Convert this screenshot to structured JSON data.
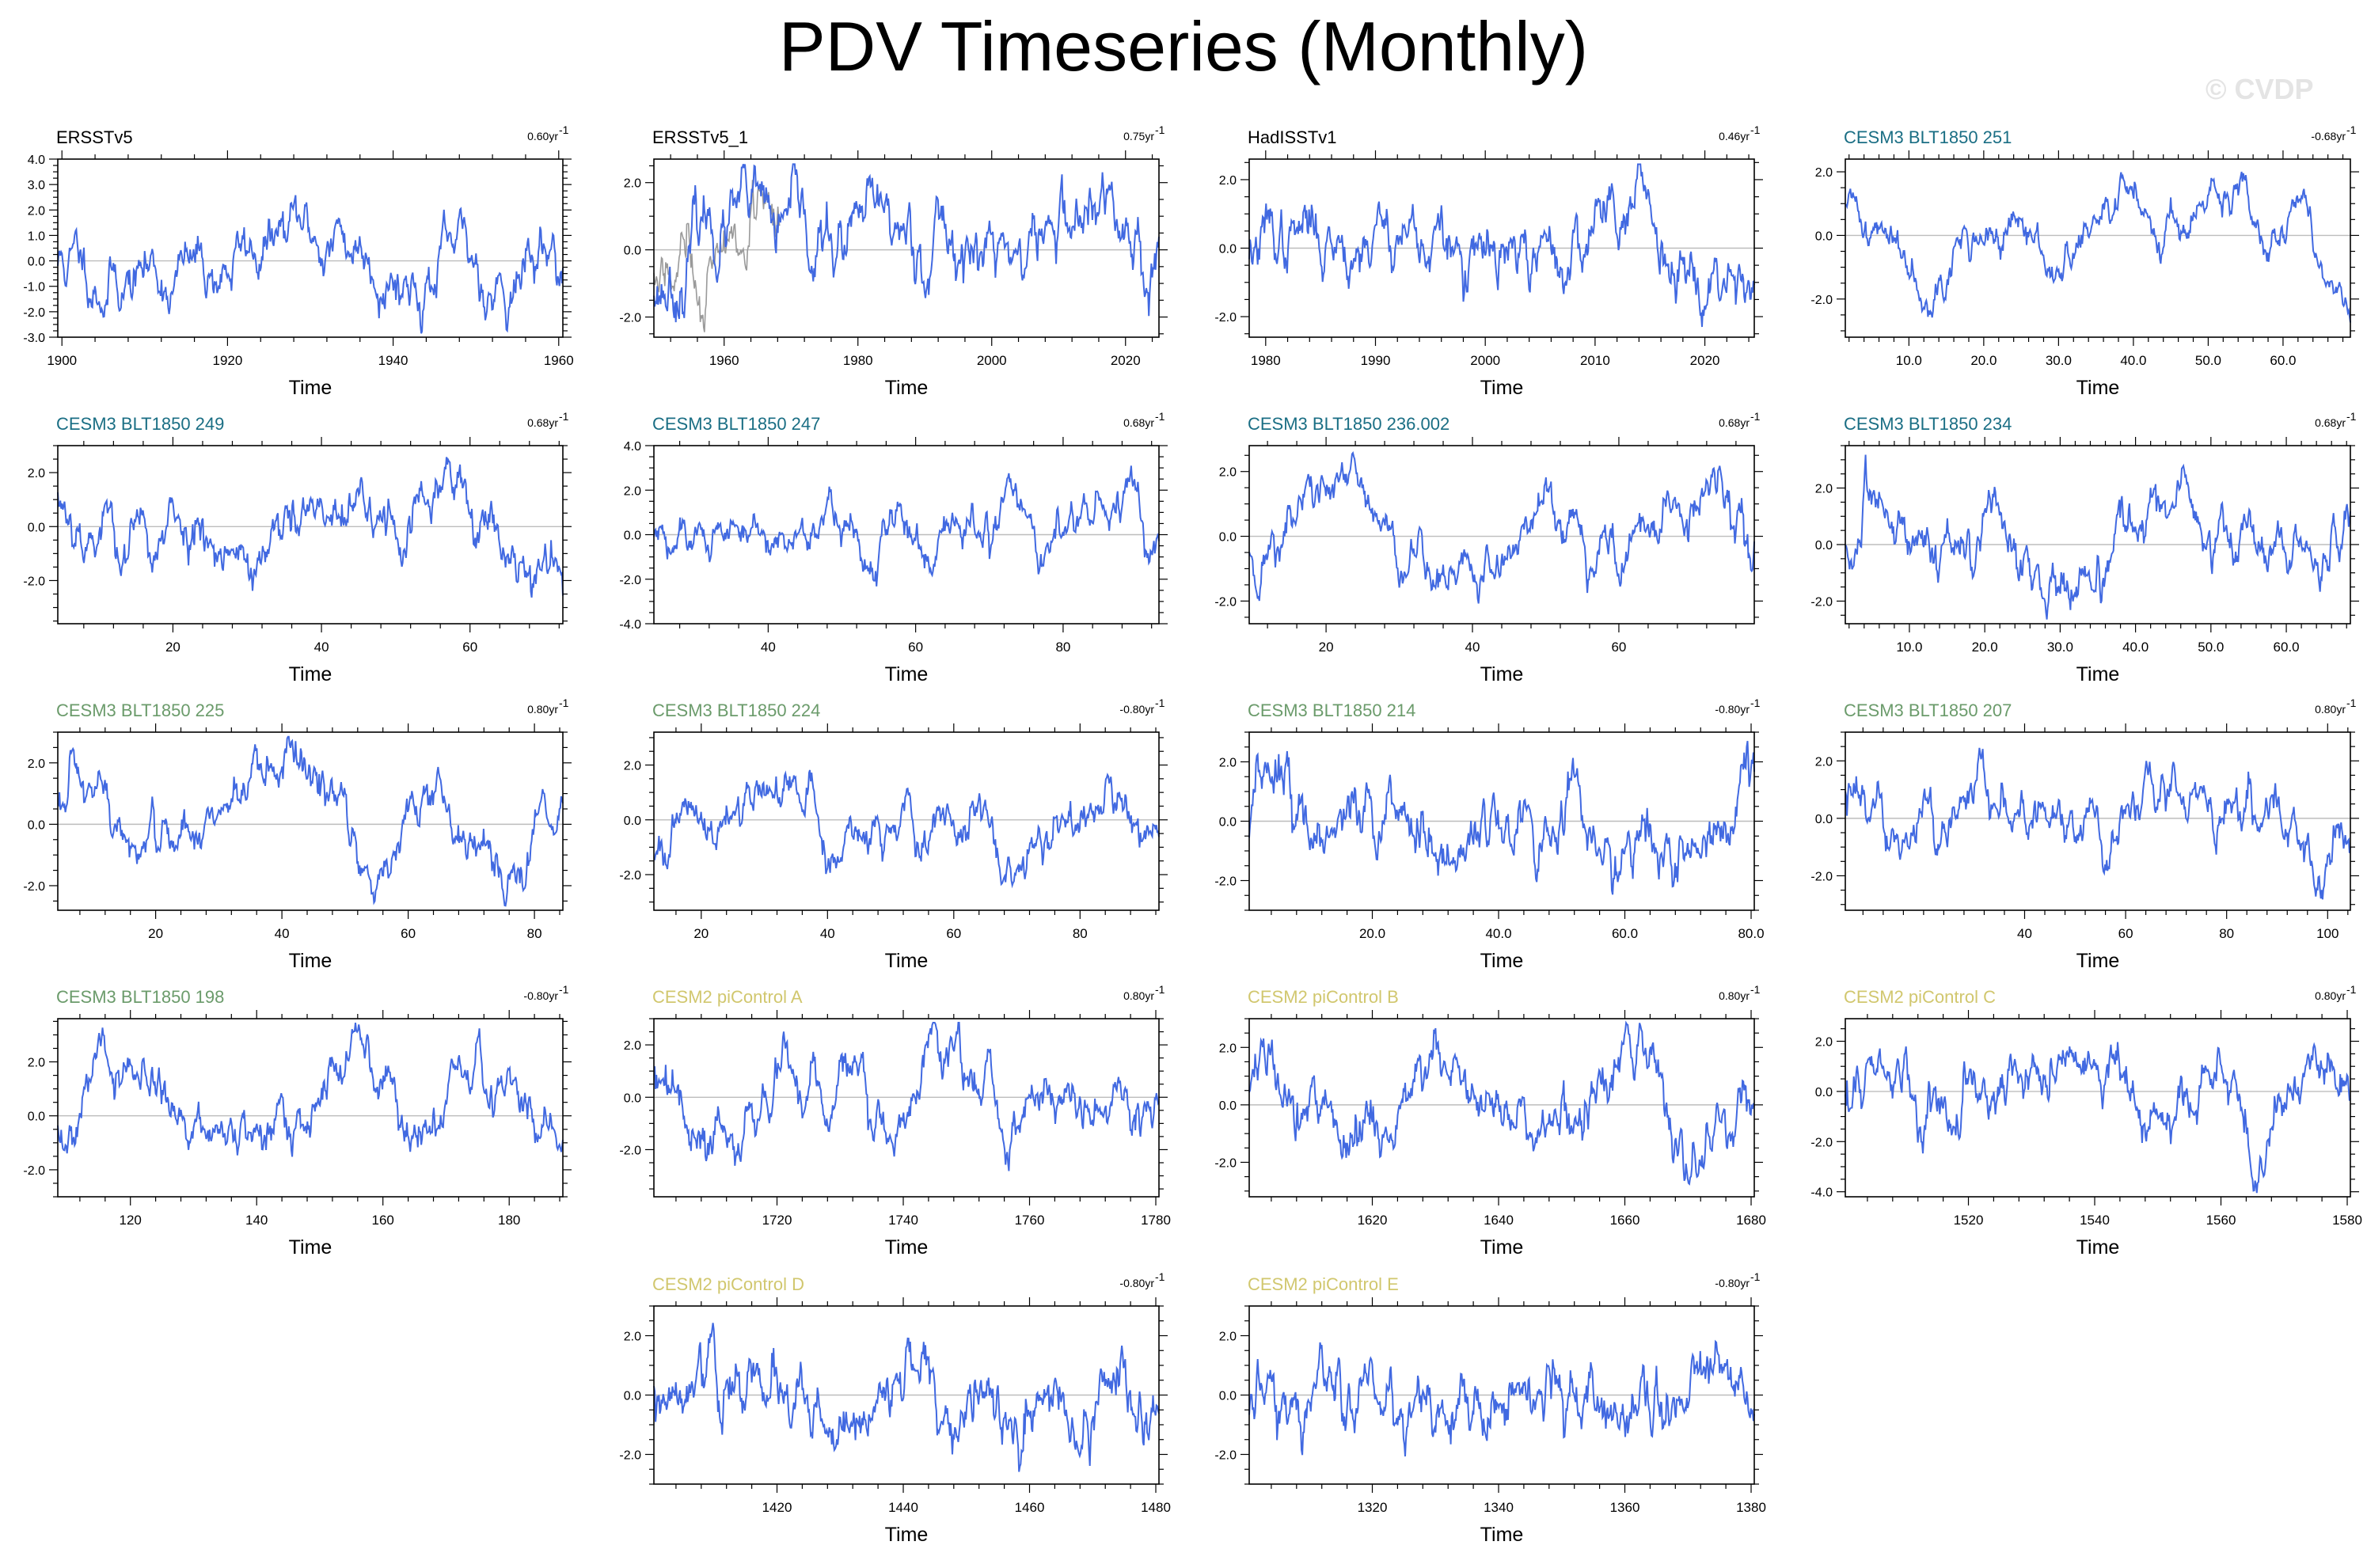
{
  "title": "PDV Timeseries (Monthly)",
  "copyright": "© CVDP",
  "xaxis_label": "Time",
  "colors": {
    "line": "#4169e1",
    "zero_line": "#bdbdbd",
    "obs_overlay": "#9a9a9a"
  },
  "chart_data": [
    {
      "type": "line",
      "title": "ERSSTv5",
      "title_color": "#000000",
      "trend": "0.60yr",
      "xlim": [
        1899.5,
        1960.5
      ],
      "ylim": [
        -3.0,
        4.0
      ],
      "yticks": [
        -3,
        -2,
        -1,
        0,
        1,
        2,
        3,
        4
      ],
      "ytick_labels": [
        "-3.0",
        "-2.0",
        "-1.0",
        "0.0",
        "1.0",
        "2.0",
        "3.0",
        "4.0"
      ],
      "xticks": [
        1900,
        1920,
        1940,
        1960
      ],
      "xtick_labels": [
        "1900",
        "1920",
        "1940",
        "1960"
      ],
      "seed": 11,
      "amp": 0.95,
      "persistence": 0.93,
      "drift": [
        [
          0,
          -0.1
        ],
        [
          0.15,
          -0.5
        ],
        [
          0.28,
          -0.4
        ],
        [
          0.45,
          0.8
        ],
        [
          0.6,
          0.7
        ],
        [
          0.7,
          -0.4
        ],
        [
          0.85,
          -0.5
        ],
        [
          1,
          0.5
        ]
      ]
    },
    {
      "type": "line",
      "title": "ERSSTv5_1",
      "title_color": "#000000",
      "trend": "0.75yr",
      "xlim": [
        1949.5,
        2025.0
      ],
      "ylim": [
        -2.6,
        2.7
      ],
      "yticks": [
        -2,
        0,
        2
      ],
      "ytick_labels": [
        "-2.0",
        "0.0",
        "2.0"
      ],
      "xticks": [
        1960,
        1980,
        2000,
        2020
      ],
      "xtick_labels": [
        "1960",
        "1980",
        "2000",
        "2020"
      ],
      "seed": 23,
      "amp": 0.9,
      "persistence": 0.93,
      "overlay": true,
      "drift": [
        [
          0,
          -1.0
        ],
        [
          0.12,
          0.8
        ],
        [
          0.3,
          -0.1
        ],
        [
          0.55,
          0.6
        ],
        [
          0.68,
          -0.3
        ],
        [
          0.85,
          0.9
        ],
        [
          1,
          0.2
        ]
      ]
    },
    {
      "type": "line",
      "title": "HadISSTv1",
      "title_color": "#000000",
      "trend": "0.46yr",
      "xlim": [
        1978.5,
        2024.5
      ],
      "ylim": [
        -2.6,
        2.6
      ],
      "yticks": [
        -2,
        0,
        2
      ],
      "ytick_labels": [
        "-2.0",
        "0.0",
        "2.0"
      ],
      "xticks": [
        1980,
        1990,
        2000,
        2010,
        2020
      ],
      "xtick_labels": [
        "1980",
        "1990",
        "2000",
        "2010",
        "2020"
      ],
      "seed": 37,
      "amp": 0.8,
      "persistence": 0.93,
      "drift": [
        [
          0,
          0.0
        ],
        [
          0.3,
          0.8
        ],
        [
          0.45,
          -0.8
        ],
        [
          0.62,
          -0.5
        ],
        [
          0.73,
          1.8
        ],
        [
          0.85,
          0.3
        ],
        [
          1,
          -0.3
        ]
      ]
    },
    {
      "type": "line",
      "title": "CESM3 BLT1850 251",
      "title_color": "#1a6e84",
      "trend": "-0.68yr",
      "xlim": [
        1.5,
        69.0
      ],
      "ylim": [
        -3.2,
        2.4
      ],
      "yticks": [
        -2,
        0,
        2
      ],
      "ytick_labels": [
        "-2.0",
        "0.0",
        "2.0"
      ],
      "xticks": [
        10,
        20,
        30,
        40,
        50,
        60
      ],
      "xtick_labels": [
        "10.0",
        "20.0",
        "30.0",
        "40.0",
        "50.0",
        "60.0"
      ],
      "seed": 41,
      "amp": 0.6,
      "persistence": 0.94,
      "drift": [
        [
          0,
          0.6
        ],
        [
          0.15,
          -0.6
        ],
        [
          0.3,
          0.0
        ],
        [
          0.42,
          -0.9
        ],
        [
          0.55,
          0.8
        ],
        [
          0.75,
          0.7
        ],
        [
          0.9,
          0.9
        ],
        [
          1,
          -2.8
        ]
      ]
    },
    {
      "type": "line",
      "title": "CESM3 BLT1850 249",
      "title_color": "#1a6e84",
      "trend": "0.68yr",
      "xlim": [
        4.5,
        72.5
      ],
      "ylim": [
        -3.6,
        3.0
      ],
      "yticks": [
        -2,
        0,
        2
      ],
      "ytick_labels": [
        "-2.0",
        "0.0",
        "2.0"
      ],
      "xticks": [
        20,
        40,
        60
      ],
      "xtick_labels": [
        "20",
        "40",
        "60"
      ],
      "seed": 53,
      "amp": 0.9,
      "persistence": 0.93,
      "drift": [
        [
          0,
          0.8
        ],
        [
          0.2,
          -0.6
        ],
        [
          0.3,
          0.5
        ],
        [
          0.38,
          -1.0
        ],
        [
          0.55,
          -0.2
        ],
        [
          0.8,
          0.9
        ],
        [
          1,
          -1.2
        ]
      ]
    },
    {
      "type": "line",
      "title": "CESM3 BLT1850 247",
      "title_color": "#1a6e84",
      "trend": "0.68yr",
      "xlim": [
        24.5,
        93.0
      ],
      "ylim": [
        -4.0,
        4.0
      ],
      "yticks": [
        -4,
        -2,
        0,
        2,
        4
      ],
      "ytick_labels": [
        "-4.0",
        "-2.0",
        "0.0",
        "2.0",
        "4.0"
      ],
      "xticks": [
        40,
        60,
        80
      ],
      "xtick_labels": [
        "40",
        "60",
        "80"
      ],
      "seed": 61,
      "amp": 0.85,
      "persistence": 0.93,
      "drift": [
        [
          0,
          -0.3
        ],
        [
          0.3,
          0.4
        ],
        [
          0.6,
          0.1
        ],
        [
          0.72,
          1.5
        ],
        [
          0.76,
          -2.0
        ],
        [
          0.88,
          1.2
        ],
        [
          1,
          -0.5
        ]
      ]
    },
    {
      "type": "line",
      "title": "CESM3 BLT1850 236.002",
      "title_color": "#1a6e84",
      "trend": "0.68yr",
      "xlim": [
        9.5,
        78.5
      ],
      "ylim": [
        -2.7,
        2.8
      ],
      "yticks": [
        -2,
        0,
        2
      ],
      "ytick_labels": [
        "-2.0",
        "0.0",
        "2.0"
      ],
      "xticks": [
        20,
        40,
        60
      ],
      "xtick_labels": [
        "20",
        "40",
        "60"
      ],
      "seed": 71,
      "amp": 0.75,
      "persistence": 0.94,
      "drift": [
        [
          0,
          -0.4
        ],
        [
          0.15,
          1.2
        ],
        [
          0.3,
          -0.3
        ],
        [
          0.45,
          -1.4
        ],
        [
          0.6,
          1.1
        ],
        [
          0.75,
          -0.2
        ],
        [
          0.9,
          1.1
        ],
        [
          1,
          -0.6
        ]
      ]
    },
    {
      "type": "line",
      "title": "CESM3 BLT1850 234",
      "title_color": "#1a6e84",
      "trend": "0.68yr",
      "xlim": [
        1.5,
        68.5
      ],
      "ylim": [
        -2.8,
        3.5
      ],
      "yticks": [
        -2,
        0,
        2
      ],
      "ytick_labels": [
        "-2.0",
        "0.0",
        "2.0"
      ],
      "xticks": [
        10,
        20,
        30,
        40,
        50,
        60
      ],
      "xtick_labels": [
        "10.0",
        "20.0",
        "30.0",
        "40.0",
        "50.0",
        "60.0"
      ],
      "seed": 83,
      "amp": 0.85,
      "persistence": 0.93,
      "drift": [
        [
          0,
          -0.2
        ],
        [
          0.1,
          1.0
        ],
        [
          0.3,
          -0.5
        ],
        [
          0.45,
          -1.2
        ],
        [
          0.6,
          0.8
        ],
        [
          0.75,
          0.6
        ],
        [
          0.88,
          -0.7
        ],
        [
          1,
          0.5
        ]
      ]
    },
    {
      "type": "line",
      "title": "CESM3 BLT1850 225",
      "title_color": "#6b9b6b",
      "trend": "0.80yr",
      "xlim": [
        4.5,
        84.5
      ],
      "ylim": [
        -2.8,
        3.0
      ],
      "yticks": [
        -2,
        0,
        2
      ],
      "ytick_labels": [
        "-2.0",
        "0.0",
        "2.0"
      ],
      "xticks": [
        20,
        40,
        60,
        80
      ],
      "xtick_labels": [
        "20",
        "40",
        "60",
        "80"
      ],
      "seed": 97,
      "amp": 0.8,
      "persistence": 0.94,
      "drift": [
        [
          0,
          0.3
        ],
        [
          0.2,
          -1.2
        ],
        [
          0.33,
          1.0
        ],
        [
          0.5,
          1.0
        ],
        [
          0.62,
          -1.1
        ],
        [
          0.75,
          0.6
        ],
        [
          0.9,
          -1.0
        ],
        [
          1,
          1.0
        ]
      ]
    },
    {
      "type": "line",
      "title": "CESM3 BLT1850 224",
      "title_color": "#6b9b6b",
      "trend": "-0.80yr",
      "xlim": [
        12.5,
        92.5
      ],
      "ylim": [
        -3.3,
        3.2
      ],
      "yticks": [
        -2,
        0,
        2
      ],
      "ytick_labels": [
        "-2.0",
        "0.0",
        "2.0"
      ],
      "xticks": [
        20,
        40,
        60,
        80
      ],
      "xtick_labels": [
        "20",
        "40",
        "60",
        "80"
      ],
      "seed": 101,
      "amp": 0.8,
      "persistence": 0.94,
      "drift": [
        [
          0,
          -1.0
        ],
        [
          0.25,
          1.3
        ],
        [
          0.38,
          -1.2
        ],
        [
          0.5,
          0.5
        ],
        [
          0.62,
          0.0
        ],
        [
          0.7,
          -1.5
        ],
        [
          0.85,
          0.9
        ],
        [
          1,
          -0.8
        ]
      ]
    },
    {
      "type": "line",
      "title": "CESM3 BLT1850 214",
      "title_color": "#6b9b6b",
      "trend": "-0.80yr",
      "xlim": [
        0.5,
        80.5
      ],
      "ylim": [
        -3.0,
        3.0
      ],
      "yticks": [
        -2,
        0,
        2
      ],
      "ytick_labels": [
        "-2.0",
        "0.0",
        "2.0"
      ],
      "xticks": [
        20,
        40,
        60,
        80
      ],
      "xtick_labels": [
        "20.0",
        "40.0",
        "60.0",
        "80.0"
      ],
      "seed": 113,
      "amp": 0.9,
      "persistence": 0.92,
      "drift": [
        [
          0,
          0.0
        ],
        [
          0.3,
          0.4
        ],
        [
          0.38,
          -0.9
        ],
        [
          0.62,
          0.8
        ],
        [
          0.75,
          -1.3
        ],
        [
          0.9,
          -0.3
        ],
        [
          1,
          1.6
        ]
      ]
    },
    {
      "type": "line",
      "title": "CESM3 BLT1850 207",
      "title_color": "#6b9b6b",
      "trend": "0.80yr",
      "xlim": [
        4.5,
        104.5
      ],
      "ylim": [
        -3.2,
        3.0
      ],
      "yticks": [
        -2,
        0,
        2
      ],
      "ytick_labels": [
        "-2.0",
        "0.0",
        "2.0"
      ],
      "xticks": [
        40,
        60,
        80,
        100
      ],
      "xtick_labels": [
        "40",
        "60",
        "80",
        "100"
      ],
      "seed": 127,
      "amp": 0.8,
      "persistence": 0.93,
      "drift": [
        [
          0,
          0.8
        ],
        [
          0.15,
          -0.8
        ],
        [
          0.3,
          0.3
        ],
        [
          0.45,
          -1.4
        ],
        [
          0.6,
          0.9
        ],
        [
          0.8,
          1.3
        ],
        [
          0.9,
          -0.6
        ],
        [
          1,
          -1.2
        ]
      ]
    },
    {
      "type": "line",
      "title": "CESM3 BLT1850 198",
      "title_color": "#6b9b6b",
      "trend": "-0.80yr",
      "xlim": [
        108.5,
        188.5
      ],
      "ylim": [
        -3.0,
        3.6
      ],
      "yticks": [
        -2,
        0,
        2
      ],
      "ytick_labels": [
        "-2.0",
        "0.0",
        "2.0"
      ],
      "xticks": [
        120,
        140,
        160,
        180
      ],
      "xtick_labels": [
        "120",
        "140",
        "160",
        "180"
      ],
      "seed": 131,
      "amp": 0.85,
      "persistence": 0.94,
      "drift": [
        [
          0,
          -0.6
        ],
        [
          0.12,
          1.8
        ],
        [
          0.3,
          -0.4
        ],
        [
          0.42,
          -1.2
        ],
        [
          0.6,
          1.8
        ],
        [
          0.72,
          -0.6
        ],
        [
          0.85,
          0.8
        ],
        [
          1,
          -0.5
        ]
      ]
    },
    {
      "type": "line",
      "title": "CESM2 piControl A",
      "title_color": "#d1c76e",
      "trend": "0.80yr",
      "xlim": [
        1700.5,
        1780.5
      ],
      "ylim": [
        -3.8,
        3.0
      ],
      "yticks": [
        -2,
        0,
        2
      ],
      "ytick_labels": [
        "-2.0",
        "0.0",
        "2.0"
      ],
      "xticks": [
        1720,
        1740,
        1760,
        1780
      ],
      "xtick_labels": [
        "1720",
        "1740",
        "1760",
        "1780"
      ],
      "seed": 139,
      "amp": 0.85,
      "persistence": 0.93,
      "drift": [
        [
          0,
          0.8
        ],
        [
          0.1,
          -1.6
        ],
        [
          0.25,
          1.1
        ],
        [
          0.45,
          -0.8
        ],
        [
          0.6,
          1.3
        ],
        [
          0.75,
          -0.8
        ],
        [
          0.85,
          0.4
        ],
        [
          1,
          -0.3
        ]
      ]
    },
    {
      "type": "line",
      "title": "CESM2 piControl B",
      "title_color": "#d1c76e",
      "trend": "0.80yr",
      "xlim": [
        1600.5,
        1680.5
      ],
      "ylim": [
        -3.2,
        3.0
      ],
      "yticks": [
        -2,
        0,
        2
      ],
      "ytick_labels": [
        "-2.0",
        "0.0",
        "2.0"
      ],
      "xticks": [
        1620,
        1640,
        1660,
        1680
      ],
      "xtick_labels": [
        "1620",
        "1640",
        "1660",
        "1680"
      ],
      "seed": 149,
      "amp": 0.85,
      "persistence": 0.92,
      "drift": [
        [
          0,
          0.3
        ],
        [
          0.2,
          -1.0
        ],
        [
          0.35,
          0.8
        ],
        [
          0.5,
          -0.5
        ],
        [
          0.65,
          -0.9
        ],
        [
          0.75,
          1.3
        ],
        [
          0.87,
          -1.2
        ],
        [
          1,
          0.4
        ]
      ]
    },
    {
      "type": "line",
      "title": "CESM2 piControl C",
      "title_color": "#d1c76e",
      "trend": "0.80yr",
      "xlim": [
        1500.5,
        1580.5
      ],
      "ylim": [
        -4.2,
        2.9
      ],
      "yticks": [
        -4,
        -2,
        0,
        2
      ],
      "ytick_labels": [
        "-4.0",
        "-2.0",
        "0.0",
        "2.0"
      ],
      "xticks": [
        1520,
        1540,
        1560,
        1580
      ],
      "xtick_labels": [
        "1520",
        "1540",
        "1560",
        "1580"
      ],
      "seed": 157,
      "amp": 0.85,
      "persistence": 0.92,
      "drift": [
        [
          0,
          0.4
        ],
        [
          0.25,
          -0.3
        ],
        [
          0.5,
          0.6
        ],
        [
          0.6,
          -1.0
        ],
        [
          0.72,
          0.5
        ],
        [
          0.8,
          -2.2
        ],
        [
          0.9,
          0.5
        ],
        [
          1,
          0.8
        ]
      ]
    },
    {
      "type": "line",
      "title": "CESM2 piControl D",
      "title_color": "#d1c76e",
      "trend": "-0.80yr",
      "xlim": [
        1400.5,
        1480.5
      ],
      "ylim": [
        -3.0,
        3.0
      ],
      "yticks": [
        -2,
        0,
        2
      ],
      "ytick_labels": [
        "-2.0",
        "0.0",
        "2.0"
      ],
      "xticks": [
        1420,
        1440,
        1460,
        1480
      ],
      "xtick_labels": [
        "1420",
        "1440",
        "1460",
        "1480"
      ],
      "seed": 163,
      "amp": 0.85,
      "persistence": 0.91,
      "drift": [
        [
          0,
          -0.2
        ],
        [
          0.15,
          0.8
        ],
        [
          0.35,
          -0.9
        ],
        [
          0.5,
          1.0
        ],
        [
          0.6,
          -0.2
        ],
        [
          0.72,
          -1.3
        ],
        [
          0.9,
          1.0
        ],
        [
          1,
          -1.3
        ]
      ]
    },
    {
      "type": "line",
      "title": "CESM2 piControl E",
      "title_color": "#d1c76e",
      "trend": "-0.80yr",
      "xlim": [
        1300.5,
        1380.5
      ],
      "ylim": [
        -3.0,
        3.0
      ],
      "yticks": [
        -2,
        0,
        2
      ],
      "ytick_labels": [
        "-2.0",
        "0.0",
        "2.0"
      ],
      "xticks": [
        1320,
        1340,
        1360,
        1380
      ],
      "xtick_labels": [
        "1320",
        "1340",
        "1360",
        "1380"
      ],
      "seed": 173,
      "amp": 0.85,
      "persistence": 0.91,
      "drift": [
        [
          0,
          -1.2
        ],
        [
          0.15,
          0.9
        ],
        [
          0.3,
          -0.2
        ],
        [
          0.45,
          -0.8
        ],
        [
          0.6,
          0.6
        ],
        [
          0.75,
          -0.5
        ],
        [
          0.88,
          1.0
        ],
        [
          1,
          -0.8
        ]
      ]
    }
  ]
}
